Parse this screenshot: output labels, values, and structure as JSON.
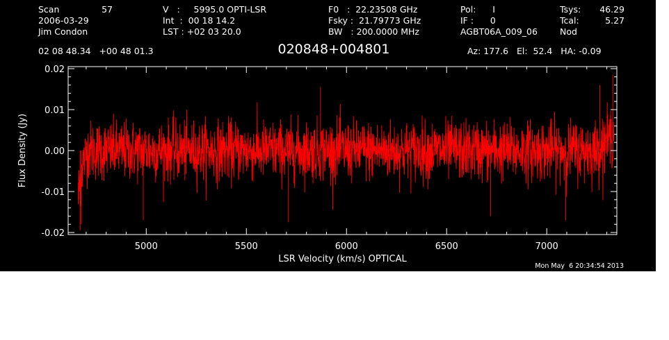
{
  "header": {
    "col1": [
      "Scan",
      "2006-03-29",
      "Jim Condon"
    ],
    "scan_number": "57",
    "col2": [
      "V   :     5995.0 OPTI-LSR",
      "Int  :  00 18 14.2",
      "LST : +02 03 20.0"
    ],
    "col3": [
      "F0   :  22.23508 GHz",
      "Fsky :  21.79773 GHz",
      "BW   : 200.0000 MHz"
    ],
    "col4": [
      "Pol:      I",
      "IF :      0",
      "AGBT06A_009_06"
    ],
    "col5": [
      "Tsys:",
      "Tcal:",
      "Nod"
    ],
    "col5_values": [
      "46.29",
      "5.27",
      ""
    ],
    "coordinates": "02 08 48.34   +00 48 01.3",
    "object": "020848+004801",
    "pointing": "Az: 177.6   El:  52.4   HA: -0.09"
  },
  "timestamp": "Mon May  6 20:34:54 2013",
  "colors": {
    "background": "#000000",
    "foreground": "#ffffff",
    "trace": "#ff0000"
  },
  "chart_data": {
    "type": "line",
    "title": "020848+004801",
    "xlabel": "LSR Velocity (km/s) OPTICAL",
    "ylabel": "Flux Density (Jy)",
    "xlim": [
      4610,
      7350
    ],
    "ylim": [
      -0.0205,
      0.0205
    ],
    "xticks": [
      5000,
      5500,
      6000,
      6500,
      7000
    ],
    "xtick_labels": [
      "5000",
      "5500",
      "6000",
      "6500",
      "7000"
    ],
    "yticks": [
      -0.02,
      -0.01,
      0.0,
      0.01,
      0.02
    ],
    "ytick_labels": [
      "-0.02",
      "-0.01",
      "0.00",
      "0.01",
      "0.02"
    ],
    "grid": false,
    "series": [
      {
        "color": "#ff0000",
        "x_start": 4660,
        "x_end": 7335,
        "points": 2200,
        "noise_rms": 0.005,
        "notable_values": [
          {
            "x": 4670,
            "y": -0.0195
          },
          {
            "x": 4675,
            "y": -0.018
          },
          {
            "x": 4985,
            "y": -0.017
          },
          {
            "x": 5710,
            "y": -0.0175
          },
          {
            "x": 6720,
            "y": -0.016
          },
          {
            "x": 7095,
            "y": -0.017
          },
          {
            "x": 7265,
            "y": 0.016
          },
          {
            "x": 7330,
            "y": 0.0185
          },
          {
            "x": 5870,
            "y": 0.0155
          }
        ]
      }
    ]
  }
}
